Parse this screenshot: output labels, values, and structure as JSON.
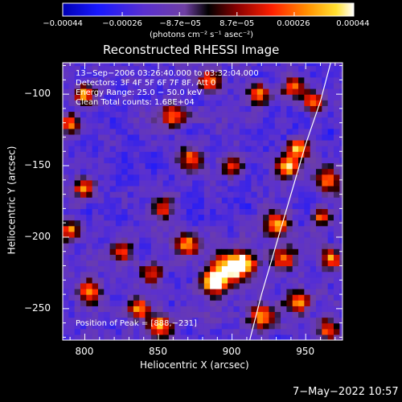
{
  "chart_data": {
    "type": "heatmap",
    "title": "Reconstructed RHESSI Image",
    "xlabel": "Heliocentric X (arcsec)",
    "ylabel": "Heliocentric Y (arcsec)",
    "xlim": [
      785,
      975
    ],
    "ylim": [
      -272,
      -78
    ],
    "x_ticks": [
      800,
      850,
      900,
      950
    ],
    "x_tick_labels": [
      "800",
      "850",
      "900",
      "950"
    ],
    "y_ticks": [
      -100,
      -150,
      -200,
      -250
    ],
    "y_tick_labels": [
      "−100",
      "−150",
      "−200",
      "−250"
    ],
    "colorbar": {
      "tick_labels": [
        "−0.00044",
        "−0.00026",
        "−8.7e−05",
        "8.7e−05",
        "0.00026",
        "0.00044"
      ],
      "range": [
        -0.00044,
        0.00044
      ],
      "units_line": "(photons cm⁻² s⁻¹ asec⁻²)"
    },
    "annotations": [
      "13−Sep−2006 03:26:40.000 to 03:32:04.000",
      "Detectors: 3F 4F 5F 6F 7F 8F, Att 0",
      "Energy Range: 25.0 − 50.0 keV",
      "Clean     Total counts: 1.68E+04"
    ],
    "peak_label": "Position of Peak = [888,−231]",
    "peak_position": [
      888,
      -231
    ],
    "limb_curve": [
      [
        912,
        -272
      ],
      [
        920,
        -240
      ],
      [
        930,
        -205
      ],
      [
        940,
        -170
      ],
      [
        950,
        -135
      ],
      [
        960,
        -105
      ],
      [
        967,
        -78
      ]
    ],
    "hot_spots": [
      {
        "x": 888,
        "y": -231,
        "v": 1.0,
        "r": 8
      },
      {
        "x": 897,
        "y": -222,
        "v": 0.9,
        "r": 10
      },
      {
        "x": 908,
        "y": -218,
        "v": 0.75,
        "r": 9
      },
      {
        "x": 870,
        "y": -205,
        "v": 0.65,
        "r": 8
      },
      {
        "x": 938,
        "y": -150,
        "v": 0.85,
        "r": 8
      },
      {
        "x": 945,
        "y": -138,
        "v": 0.7,
        "r": 7
      },
      {
        "x": 930,
        "y": -190,
        "v": 0.6,
        "r": 9
      },
      {
        "x": 935,
        "y": -215,
        "v": 0.55,
        "r": 8
      },
      {
        "x": 945,
        "y": -245,
        "v": 0.7,
        "r": 8
      },
      {
        "x": 920,
        "y": -255,
        "v": 0.6,
        "r": 9
      },
      {
        "x": 965,
        "y": -160,
        "v": 0.55,
        "r": 8
      },
      {
        "x": 968,
        "y": -215,
        "v": 0.5,
        "r": 7
      },
      {
        "x": 955,
        "y": -105,
        "v": 0.5,
        "r": 7
      },
      {
        "x": 942,
        "y": -95,
        "v": 0.55,
        "r": 7
      },
      {
        "x": 800,
        "y": -100,
        "v": 0.65,
        "r": 7
      },
      {
        "x": 790,
        "y": -120,
        "v": 0.55,
        "r": 7
      },
      {
        "x": 800,
        "y": -165,
        "v": 0.55,
        "r": 7
      },
      {
        "x": 790,
        "y": -195,
        "v": 0.5,
        "r": 7
      },
      {
        "x": 803,
        "y": -238,
        "v": 0.55,
        "r": 8
      },
      {
        "x": 850,
        "y": -262,
        "v": 0.75,
        "r": 8
      },
      {
        "x": 837,
        "y": -250,
        "v": 0.55,
        "r": 7
      },
      {
        "x": 860,
        "y": -115,
        "v": 0.55,
        "r": 8
      },
      {
        "x": 872,
        "y": -145,
        "v": 0.5,
        "r": 8
      },
      {
        "x": 853,
        "y": -180,
        "v": 0.45,
        "r": 7
      },
      {
        "x": 900,
        "y": -150,
        "v": 0.45,
        "r": 7
      },
      {
        "x": 885,
        "y": -90,
        "v": 0.5,
        "r": 7
      },
      {
        "x": 918,
        "y": -100,
        "v": 0.5,
        "r": 7
      },
      {
        "x": 825,
        "y": -210,
        "v": 0.4,
        "r": 7
      },
      {
        "x": 845,
        "y": -225,
        "v": 0.45,
        "r": 7
      },
      {
        "x": 965,
        "y": -265,
        "v": 0.5,
        "r": 7
      },
      {
        "x": 960,
        "y": -185,
        "v": 0.45,
        "r": 6
      }
    ]
  },
  "footer": {
    "date": "7−May−2022 10:57"
  }
}
